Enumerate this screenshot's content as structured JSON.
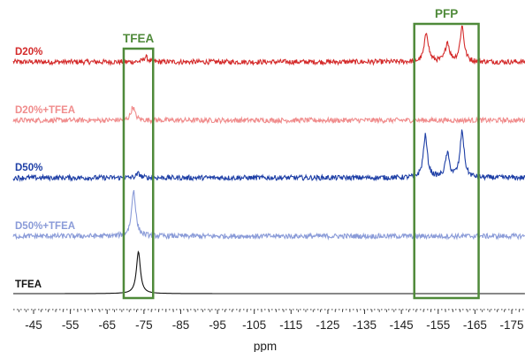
{
  "chart_data": {
    "type": "line",
    "title": "",
    "xlabel": "ppm",
    "ylabel": "",
    "xlim": [
      -40,
      -177
    ],
    "x_reversed": true,
    "xticks": [
      -45,
      -55,
      -65,
      -75,
      -85,
      -95,
      -105,
      -115,
      -125,
      -135,
      -145,
      -155,
      -165,
      -175
    ],
    "xtick_labels": [
      "-45",
      "-55",
      "-65",
      "-75",
      "-85",
      "-95",
      "-105",
      "-115",
      "-125",
      "-135",
      "-145",
      "-155",
      "-165",
      "-175"
    ],
    "grid": false,
    "series": [
      {
        "name": "D20%",
        "color": "#d42a2a",
        "noise": 0.3,
        "peaks": [
          {
            "ppm": -75.5,
            "height": 0.6
          },
          {
            "ppm": -151.8,
            "height": 3.5
          },
          {
            "ppm": -157.5,
            "height": 2.3
          },
          {
            "ppm": -161.5,
            "height": 4.2
          }
        ]
      },
      {
        "name": "D20%+TFEA",
        "color": "#f08c8c",
        "noise": 0.3,
        "peaks": [
          {
            "ppm": -72.0,
            "height": 1.6
          }
        ]
      },
      {
        "name": "D50%",
        "color": "#1e3fa6",
        "noise": 0.3,
        "peaks": [
          {
            "ppm": -73.5,
            "height": 0.5
          },
          {
            "ppm": -151.5,
            "height": 5.0
          },
          {
            "ppm": -157.5,
            "height": 2.8
          },
          {
            "ppm": -161.5,
            "height": 5.5
          }
        ]
      },
      {
        "name": "D50%+TFEA",
        "color": "#8a9bd8",
        "noise": 0.3,
        "peaks": [
          {
            "ppm": -72.2,
            "height": 5.5
          }
        ]
      },
      {
        "name": "TFEA",
        "color": "#111111",
        "noise": 0.0,
        "peaks": [
          {
            "ppm": -73.5,
            "height": 5.0
          }
        ]
      }
    ],
    "annotations": [
      {
        "label": "TFEA",
        "ppm_range": [
          -69.5,
          -77.5
        ],
        "color": "#4f8a3a"
      },
      {
        "label": "PFP",
        "ppm_range": [
          -148.5,
          -166.0
        ],
        "color": "#4f8a3a"
      }
    ]
  }
}
